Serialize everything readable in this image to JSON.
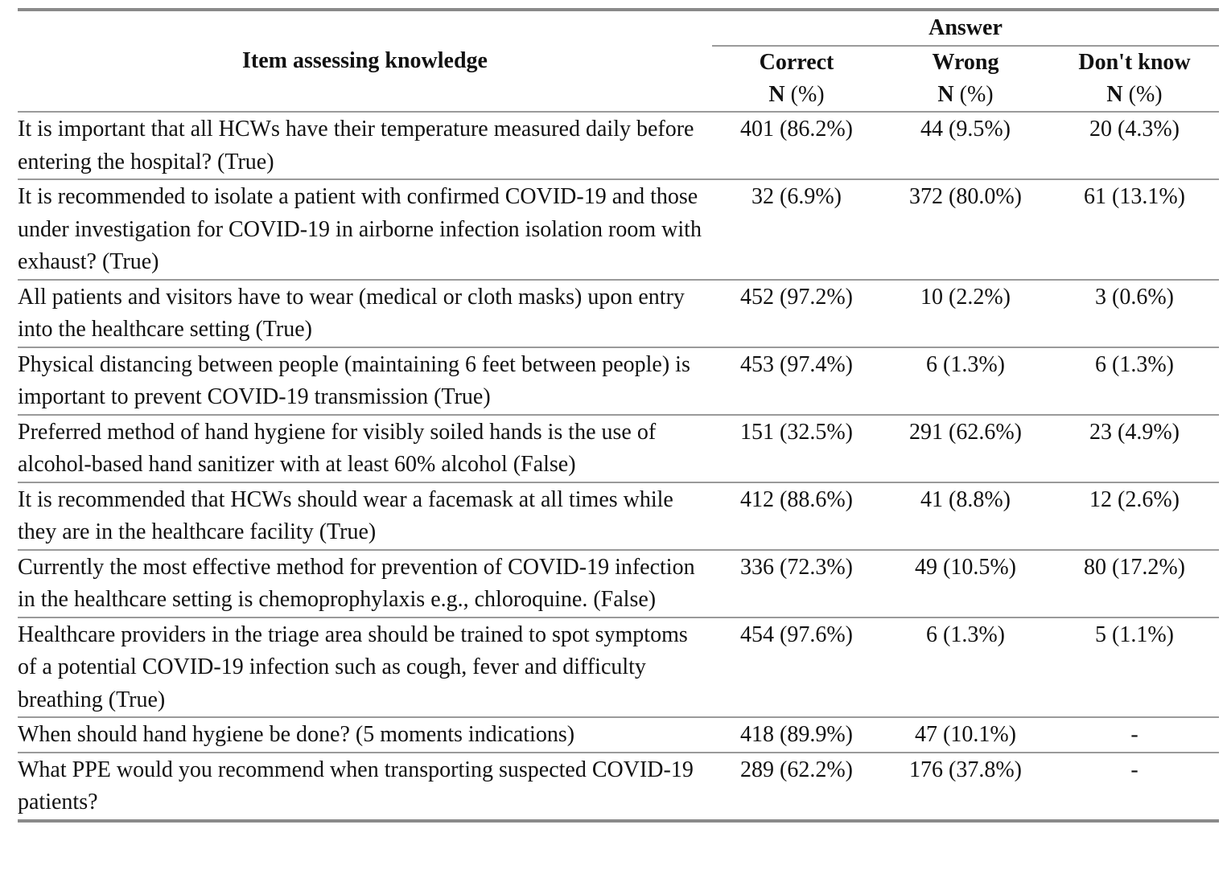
{
  "header": {
    "item": "Item assessing knowledge",
    "answer": "Answer",
    "columns": [
      {
        "name": "Correct",
        "n": "N",
        "pct": "(%)"
      },
      {
        "name": "Wrong",
        "n": "N",
        "pct": "(%)"
      },
      {
        "name": "Don't know",
        "n": "N",
        "pct": "(%)"
      }
    ]
  },
  "table": {
    "rows": [
      [
        "It is important that all HCWs have their temperature measured daily before entering the hospital? (True)",
        "401 (86.2%)",
        "44 (9.5%)",
        "20 (4.3%)"
      ],
      [
        "It is recommended to isolate a patient with confirmed COVID-19 and those under investigation for COVID-19 in airborne infection isolation room with exhaust? (True)",
        "32 (6.9%)",
        "372 (80.0%)",
        "61 (13.1%)"
      ],
      [
        "All patients and visitors have to wear (medical or cloth masks) upon entry into the healthcare setting (True)",
        "452 (97.2%)",
        "10 (2.2%)",
        "3 (0.6%)"
      ],
      [
        "Physical distancing between people (maintaining 6 feet between people) is important to prevent COVID-19 transmission (True)",
        "453 (97.4%)",
        "6 (1.3%)",
        "6 (1.3%)"
      ],
      [
        "Preferred method of hand hygiene for visibly soiled hands is the use of alcohol-based hand sanitizer with at least 60% alcohol (False)",
        "151 (32.5%)",
        "291 (62.6%)",
        "23 (4.9%)"
      ],
      [
        "It is recommended that HCWs should wear a facemask at all times while they are in the healthcare facility (True)",
        "412 (88.6%)",
        "41 (8.8%)",
        "12 (2.6%)"
      ],
      [
        "Currently the most effective method for prevention of COVID-19 infection in the healthcare setting is chemoprophylaxis e.g., chloroquine. (False)",
        "336 (72.3%)",
        "49 (10.5%)",
        "80 (17.2%)"
      ],
      [
        "Healthcare providers in the triage area should be trained to spot symptoms of a potential COVID-19 infection such as cough, fever and difficulty breathing (True)",
        "454 (97.6%)",
        "6 (1.3%)",
        "5 (1.1%)"
      ],
      [
        "When should hand hygiene be done? (5 moments indications)",
        "418 (89.9%)",
        "47 (10.1%)",
        "-"
      ],
      [
        "What PPE would you recommend when transporting suspected COVID-19 patients?",
        "289 (62.2%)",
        "176 (37.8%)",
        "-"
      ]
    ]
  }
}
